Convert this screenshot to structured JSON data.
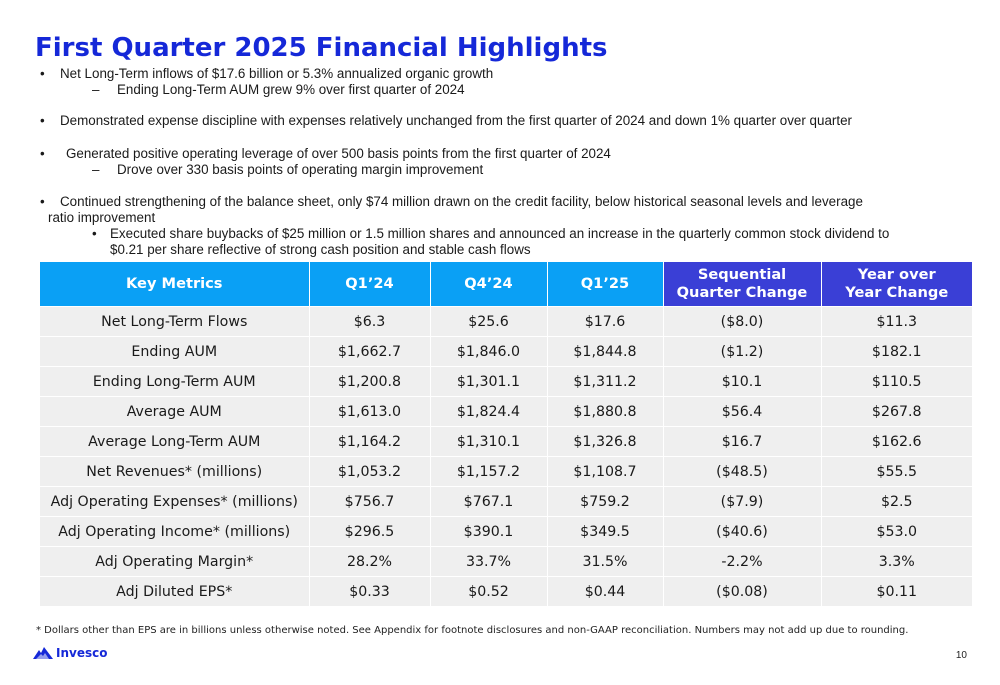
{
  "title": "First Quarter 2025 Financial Highlights",
  "bullets": {
    "b1": "Net Long-Term inflows of $17.6 billion or 5.3% annualized organic growth",
    "b1_sub1": "Ending Long-Term AUM grew 9% over first quarter of 2024",
    "b2": "Demonstrated expense discipline with expenses relatively unchanged from the first quarter of 2024 and down 1% quarter over quarter",
    "b3": "Generated positive operating leverage of over 500 basis points from the first quarter of 2024",
    "b3_sub1": "Drove over 330 basis points of operating margin improvement",
    "b4_line1": "Continued strengthening of the balance sheet, only $74 million drawn on the credit facility, below historical seasonal levels and leverage",
    "b4_line2": "ratio improvement",
    "b4_sub1_line1": "Executed share buybacks of $25 million or 1.5 million shares and announced an increase in the quarterly common stock dividend to",
    "b4_sub1_line2": "$0.21 per share reflective of strong cash position and stable cash flows",
    "bullet_char": "•",
    "dash_char": "–"
  },
  "table": {
    "headers": [
      "Key Metrics",
      "Q1’24",
      "Q4’24",
      "Q1’25"
    ],
    "header_seq_line1": "Sequential",
    "header_seq_line2": "Quarter Change",
    "header_yoy_line1": "Year over",
    "header_yoy_line2": "Year Change",
    "rows": [
      [
        "Net Long-Term Flows",
        "$6.3",
        "$25.6",
        "$17.6",
        "($8.0)",
        "$11.3"
      ],
      [
        "Ending AUM",
        "$1,662.7",
        "$1,846.0",
        "$1,844.8",
        "($1.2)",
        "$182.1"
      ],
      [
        "Ending Long-Term AUM",
        "$1,200.8",
        "$1,301.1",
        "$1,311.2",
        "$10.1",
        "$110.5"
      ],
      [
        "Average AUM",
        "$1,613.0",
        "$1,824.4",
        "$1,880.8",
        "$56.4",
        "$267.8"
      ],
      [
        "Average Long-Term AUM",
        "$1,164.2",
        "$1,310.1",
        "$1,326.8",
        "$16.7",
        "$162.6"
      ],
      [
        "Net Revenues* (millions)",
        "$1,053.2",
        "$1,157.2",
        "$1,108.7",
        "($48.5)",
        "$55.5"
      ],
      [
        "Adj Operating Expenses* (millions)",
        "$756.7",
        "$767.1",
        "$759.2",
        "($7.9)",
        "$2.5"
      ],
      [
        "Adj Operating Income* (millions)",
        "$296.5",
        "$390.1",
        "$349.5",
        "($40.6)",
        "$53.0"
      ],
      [
        "Adj Operating Margin*",
        "28.2%",
        "33.7%",
        "31.5%",
        "-2.2%",
        "3.3%"
      ],
      [
        "Adj Diluted EPS*",
        "$0.33",
        "$0.52",
        "$0.44",
        "($0.08)",
        "$0.11"
      ]
    ]
  },
  "footnote": "* Dollars other than EPS are in billions unless otherwise noted. See Appendix for footnote disclosures and non-GAAP reconciliation. Numbers may not add up due to rounding.",
  "logo_text": "Invesco",
  "page_number": "10",
  "colors": {
    "title": "#1528d8",
    "header_cyan": "#0aa0f5",
    "header_purple": "#3a3fd6",
    "row_bg": "#efefef"
  }
}
